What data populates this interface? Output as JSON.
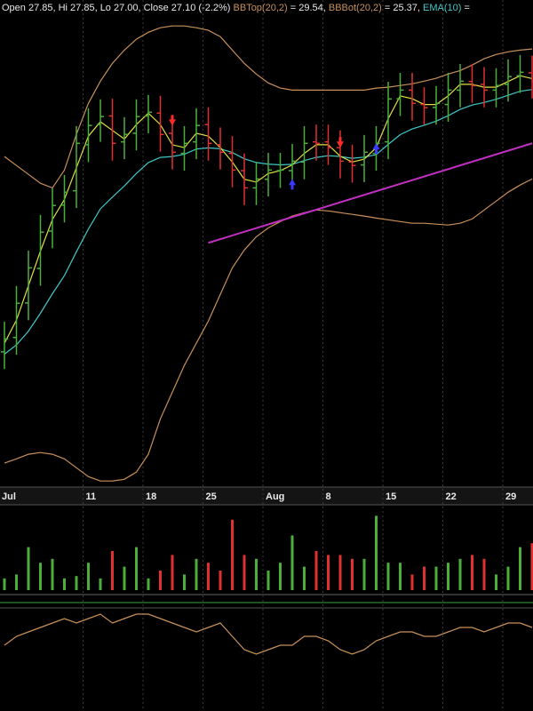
{
  "chart_data": [
    {
      "type": "ohlc",
      "header": [
        "Open 27.85, Hi 27.85, Lo 27.00, Close 27.10 (-2.2%)",
        "= 29.54,",
        "= 25.37,",
        "="
      ],
      "header_color": "#e8e8e8",
      "categories": [
        "Jul",
        null,
        null,
        null,
        null,
        null,
        null,
        "11",
        null,
        null,
        null,
        null,
        "18",
        null,
        null,
        null,
        null,
        "25",
        null,
        null,
        null,
        null,
        "Aug",
        null,
        null,
        null,
        null,
        "8",
        null,
        null,
        null,
        null,
        "15",
        null,
        null,
        null,
        null,
        "22",
        null,
        null,
        null,
        null,
        "29",
        null,
        null
      ],
      "open": [
        19.2,
        19.7,
        20.9,
        22.1,
        23.4,
        24.3,
        24.8,
        26.4,
        27.1,
        27.4,
        26.5,
        26.8,
        27.4,
        27.5,
        26.8,
        26.1,
        26.5,
        27.1,
        26.4,
        26.1,
        25.5,
        24.9,
        25.2,
        25.5,
        25.5,
        25.8,
        26.5,
        26.5,
        26.3,
        25.8,
        25.7,
        26.1,
        26.5,
        28.0,
        28.3,
        27.8,
        27.7,
        27.8,
        28.3,
        28.6,
        28.5,
        28.3,
        28.5,
        28.8,
        28.9
      ],
      "high": [
        20.25,
        21.49,
        22.72,
        23.96,
        24.89,
        25.35,
        27.05,
        27.67,
        27.98,
        28.0,
        27.36,
        27.98,
        28.13,
        28.1,
        27.4,
        27.05,
        27.67,
        27.7,
        27.0,
        26.7,
        26.1,
        25.81,
        26.12,
        26.12,
        26.43,
        27.05,
        27.1,
        27.1,
        26.9,
        26.4,
        26.74,
        27.05,
        28.59,
        28.9,
        28.9,
        28.4,
        28.44,
        28.9,
        29.21,
        29.2,
        29.1,
        29.06,
        29.37,
        29.52,
        29.5
      ],
      "low": [
        18.6,
        19.1,
        20.3,
        21.5,
        22.8,
        23.7,
        24.2,
        25.8,
        26.5,
        25.85,
        25.9,
        26.2,
        26.8,
        26.16,
        25.54,
        25.5,
        25.9,
        25.85,
        25.54,
        24.92,
        24.3,
        24.3,
        24.6,
        24.9,
        24.9,
        25.2,
        25.85,
        25.7,
        25.23,
        25.08,
        25.1,
        25.5,
        25.9,
        27.4,
        27.24,
        27.09,
        27.1,
        27.2,
        27.7,
        27.86,
        27.7,
        27.7,
        27.9,
        28.2,
        28.01
      ],
      "close": [
        19.65,
        20.89,
        22.12,
        23.36,
        24.29,
        24.75,
        26.45,
        27.07,
        27.38,
        26.45,
        26.76,
        27.38,
        27.53,
        26.76,
        26.14,
        26.45,
        27.07,
        26.45,
        26.14,
        25.52,
        24.9,
        25.21,
        25.52,
        25.52,
        25.83,
        26.45,
        26.45,
        26.3,
        25.83,
        25.68,
        26.14,
        26.45,
        27.99,
        28.3,
        27.84,
        27.69,
        27.84,
        28.3,
        28.61,
        28.46,
        28.3,
        28.46,
        28.77,
        28.92,
        28.61
      ],
      "up_color": "#4caf3a",
      "down_color": "#e03030",
      "series": [
        {
          "name": "BBTop(20,2)",
          "color": "#c8905a",
          "values": [
            25.99,
            25.68,
            25.37,
            25.06,
            24.9,
            25.52,
            26.76,
            27.84,
            28.61,
            29.23,
            29.69,
            30.07,
            30.31,
            30.47,
            30.53,
            30.53,
            30.47,
            30.38,
            30.16,
            29.69,
            29.23,
            28.86,
            28.55,
            28.37,
            28.3,
            28.3,
            28.3,
            28.3,
            28.3,
            28.3,
            28.3,
            28.37,
            28.4,
            28.46,
            28.52,
            28.61,
            28.71,
            28.86,
            28.98,
            29.17,
            29.39,
            29.54,
            29.63,
            29.69,
            29.73
          ]
        },
        {
          "name": "BBBot(20,2)",
          "color": "#c8905a",
          "values": [
            15.33,
            15.48,
            15.64,
            15.7,
            15.64,
            15.48,
            15.17,
            14.86,
            14.71,
            14.71,
            14.77,
            15.02,
            15.64,
            16.87,
            17.8,
            18.73,
            19.5,
            20.27,
            21.2,
            22.12,
            22.74,
            23.2,
            23.51,
            23.73,
            23.92,
            24.04,
            24.13,
            24.1,
            24.04,
            23.98,
            23.92,
            23.85,
            23.79,
            23.73,
            23.67,
            23.67,
            23.64,
            23.61,
            23.67,
            23.82,
            24.13,
            24.44,
            24.75,
            25.0,
            25.21
          ]
        },
        {
          "name": "EMA(10)",
          "color": "#40c8c8",
          "values": [
            19.12,
            19.44,
            19.92,
            20.54,
            21.22,
            21.85,
            22.68,
            23.47,
            24.17,
            24.58,
            24.97,
            25.4,
            25.78,
            25.96,
            25.99,
            26.07,
            26.25,
            26.29,
            26.26,
            26.13,
            25.91,
            25.78,
            25.73,
            25.7,
            25.72,
            25.85,
            25.96,
            26.02,
            25.99,
            25.93,
            25.97,
            26.06,
            26.41,
            26.75,
            26.95,
            27.08,
            27.22,
            27.41,
            27.63,
            27.78,
            27.87,
            27.98,
            28.12,
            28.26,
            28.32
          ]
        },
        {
          "color": "#e0e040",
          "values": [
            19.5,
            20.3,
            21.5,
            22.7,
            23.8,
            24.5,
            25.6,
            26.7,
            27.2,
            26.9,
            26.6,
            27.1,
            27.5,
            27.1,
            26.4,
            26.3,
            26.8,
            26.7,
            26.3,
            25.8,
            25.2,
            25.1,
            25.4,
            25.5,
            25.7,
            26.1,
            26.4,
            26.4,
            26.0,
            25.8,
            25.9,
            26.3,
            27.3,
            28.1,
            28.0,
            27.8,
            27.8,
            28.1,
            28.5,
            28.5,
            28.4,
            28.4,
            28.6,
            28.8,
            28.7
          ]
        }
      ],
      "trendline": {
        "x": [
          17,
          44
        ],
        "values": [
          22.99,
          26.45
        ],
        "color": "#c030c0"
      },
      "signals": [
        {
          "at": 14,
          "price": 27.22,
          "direction": "down",
          "color": "#ff2a2a"
        },
        {
          "at": 24,
          "price": 25.06,
          "direction": "up",
          "color": "#3a3aff"
        },
        {
          "at": 28,
          "price": 26.45,
          "direction": "down",
          "color": "#ff2a2a"
        },
        {
          "at": 31,
          "price": 26.3,
          "direction": "up",
          "color": "#3a3aff"
        }
      ],
      "ylim": [
        14.5,
        31.0
      ],
      "grid": true
    },
    {
      "type": "bar",
      "values": [
        15,
        20,
        55,
        35,
        40,
        15,
        18,
        35,
        15,
        50,
        30,
        55,
        15,
        25,
        45,
        20,
        40,
        35,
        25,
        90,
        45,
        40,
        25,
        35,
        70,
        30,
        50,
        45,
        45,
        40,
        40,
        95,
        35,
        35,
        20,
        30,
        30,
        35,
        40,
        45,
        40,
        20,
        30,
        55,
        60
      ],
      "ylim": [
        0,
        100
      ]
    },
    {
      "type": "line",
      "values": [
        63.6,
        72.7,
        77.3,
        81.8,
        86.4,
        90.9,
        86.4,
        90.9,
        95.5,
        86.4,
        90.9,
        95.5,
        95.5,
        90.9,
        86.4,
        81.8,
        77.3,
        81.8,
        86.4,
        72.7,
        59.1,
        54.5,
        59.1,
        63.6,
        63.6,
        72.7,
        72.7,
        68.2,
        59.1,
        54.5,
        59.1,
        68.2,
        72.7,
        77.3,
        77.3,
        72.7,
        72.7,
        77.3,
        81.8,
        81.8,
        77.3,
        81.8,
        86.4,
        86.4,
        81.8
      ],
      "color": "#c8905a",
      "ylim": [
        0,
        100
      ]
    }
  ]
}
